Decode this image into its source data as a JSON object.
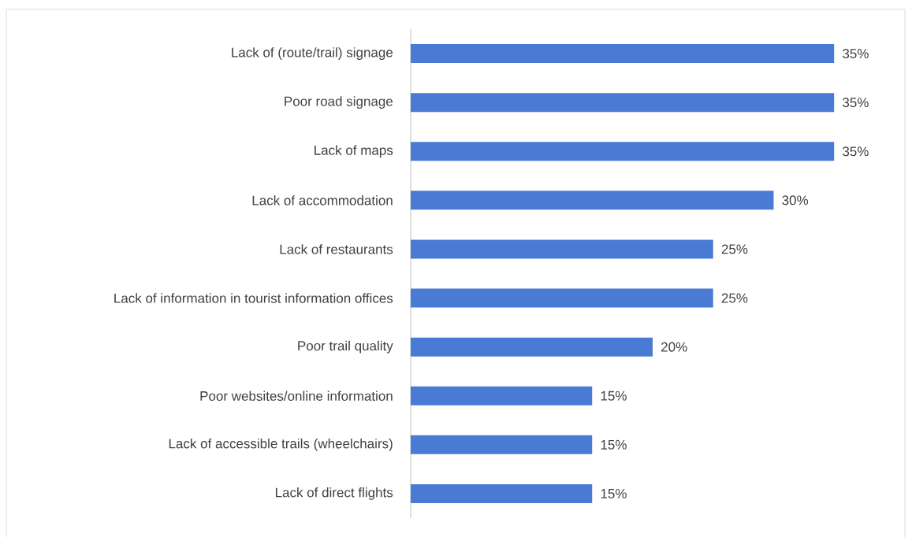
{
  "chart_data": {
    "type": "bar",
    "orientation": "horizontal",
    "tick_labels": "y",
    "categories": [
      "Lack of (route/trail) signage",
      "Poor road signage",
      "Lack of maps",
      "Lack of accommodation",
      "Lack of restaurants",
      "Lack of information in tourist information offices",
      "Poor trail quality",
      "Poor websites/online information",
      "Lack of accessible trails (wheelchairs)",
      "Lack of direct flights"
    ],
    "values": [
      35,
      35,
      35,
      30,
      25,
      25,
      20,
      15,
      15,
      15
    ],
    "value_labels": [
      "35%",
      "35%",
      "35%",
      "30%",
      "25%",
      "25%",
      "20%",
      "15%",
      "15%",
      "15%"
    ],
    "color": "#4a7bd4"
  }
}
